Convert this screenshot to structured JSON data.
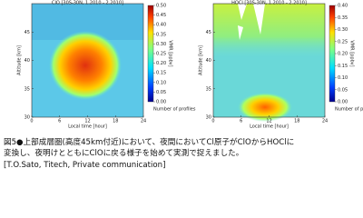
{
  "panels": [
    {
      "title": "ClO [30S-30N, 1.2010 - 2.2010]",
      "xlabel": "Local time [hour]",
      "ylabel": "Altitude [km]",
      "xlim": [
        0,
        24
      ],
      "xticks": [
        0,
        6,
        12,
        18,
        24
      ],
      "ylim": [
        30,
        50
      ],
      "yticks": [
        30,
        35,
        40,
        45
      ],
      "cbar_label": "VMR [ppbv]",
      "cbar_note": "Number of profiles",
      "cbar_lim": [
        0,
        0.5
      ],
      "cbar_ticks": [
        {
          "value": 0.5,
          "label": "0.50"
        },
        {
          "value": 0.45,
          "label": "0.45"
        },
        {
          "value": 0.4,
          "label": "0.40"
        },
        {
          "value": 0.35,
          "label": "0.35"
        },
        {
          "value": 0.3,
          "label": "0.30"
        },
        {
          "value": 0.25,
          "label": "0.25"
        },
        {
          "value": 0.2,
          "label": "0.20"
        },
        {
          "value": 0.15,
          "label": "0.15"
        },
        {
          "value": 0.1,
          "label": "0.10"
        },
        {
          "value": 0.05,
          "label": "0.05"
        },
        {
          "value": 0,
          "label": "0.00"
        }
      ]
    },
    {
      "title": "HOCl [30S-30N, 1.2010 - 2.2010]",
      "xlabel": "Local time [hour]",
      "ylabel": "Altitude [km]",
      "xlim": [
        0,
        24
      ],
      "xticks": [
        0,
        6,
        12,
        18,
        24
      ],
      "ylim": [
        30,
        50
      ],
      "yticks": [
        30,
        35,
        40,
        45
      ],
      "cbar_label": "VMR [ppbv]",
      "cbar_note": "Number of profiles",
      "cbar_lim": [
        0,
        0.4
      ],
      "cbar_ticks": [
        {
          "value": 0.4,
          "label": "0.40"
        },
        {
          "value": 0.35,
          "label": "0.35"
        },
        {
          "value": 0.3,
          "label": "0.30"
        },
        {
          "value": 0.25,
          "label": "0.25"
        },
        {
          "value": 0.2,
          "label": "0.20"
        },
        {
          "value": 0.15,
          "label": "0.15"
        },
        {
          "value": 0.1,
          "label": "0.10"
        },
        {
          "value": 0.05,
          "label": "0.05"
        },
        {
          "value": 0,
          "label": "0.00"
        }
      ]
    }
  ],
  "caption": {
    "lines": [
      "図5●上部成層圏(高度45km付近)において、夜間においてCl原子がClOからHOClに",
      "変換し、夜明けとともにClOに戻る様子を始めて実測で捉えました。",
      "[T.O.Sato, Titech, Private communication]"
    ]
  }
}
